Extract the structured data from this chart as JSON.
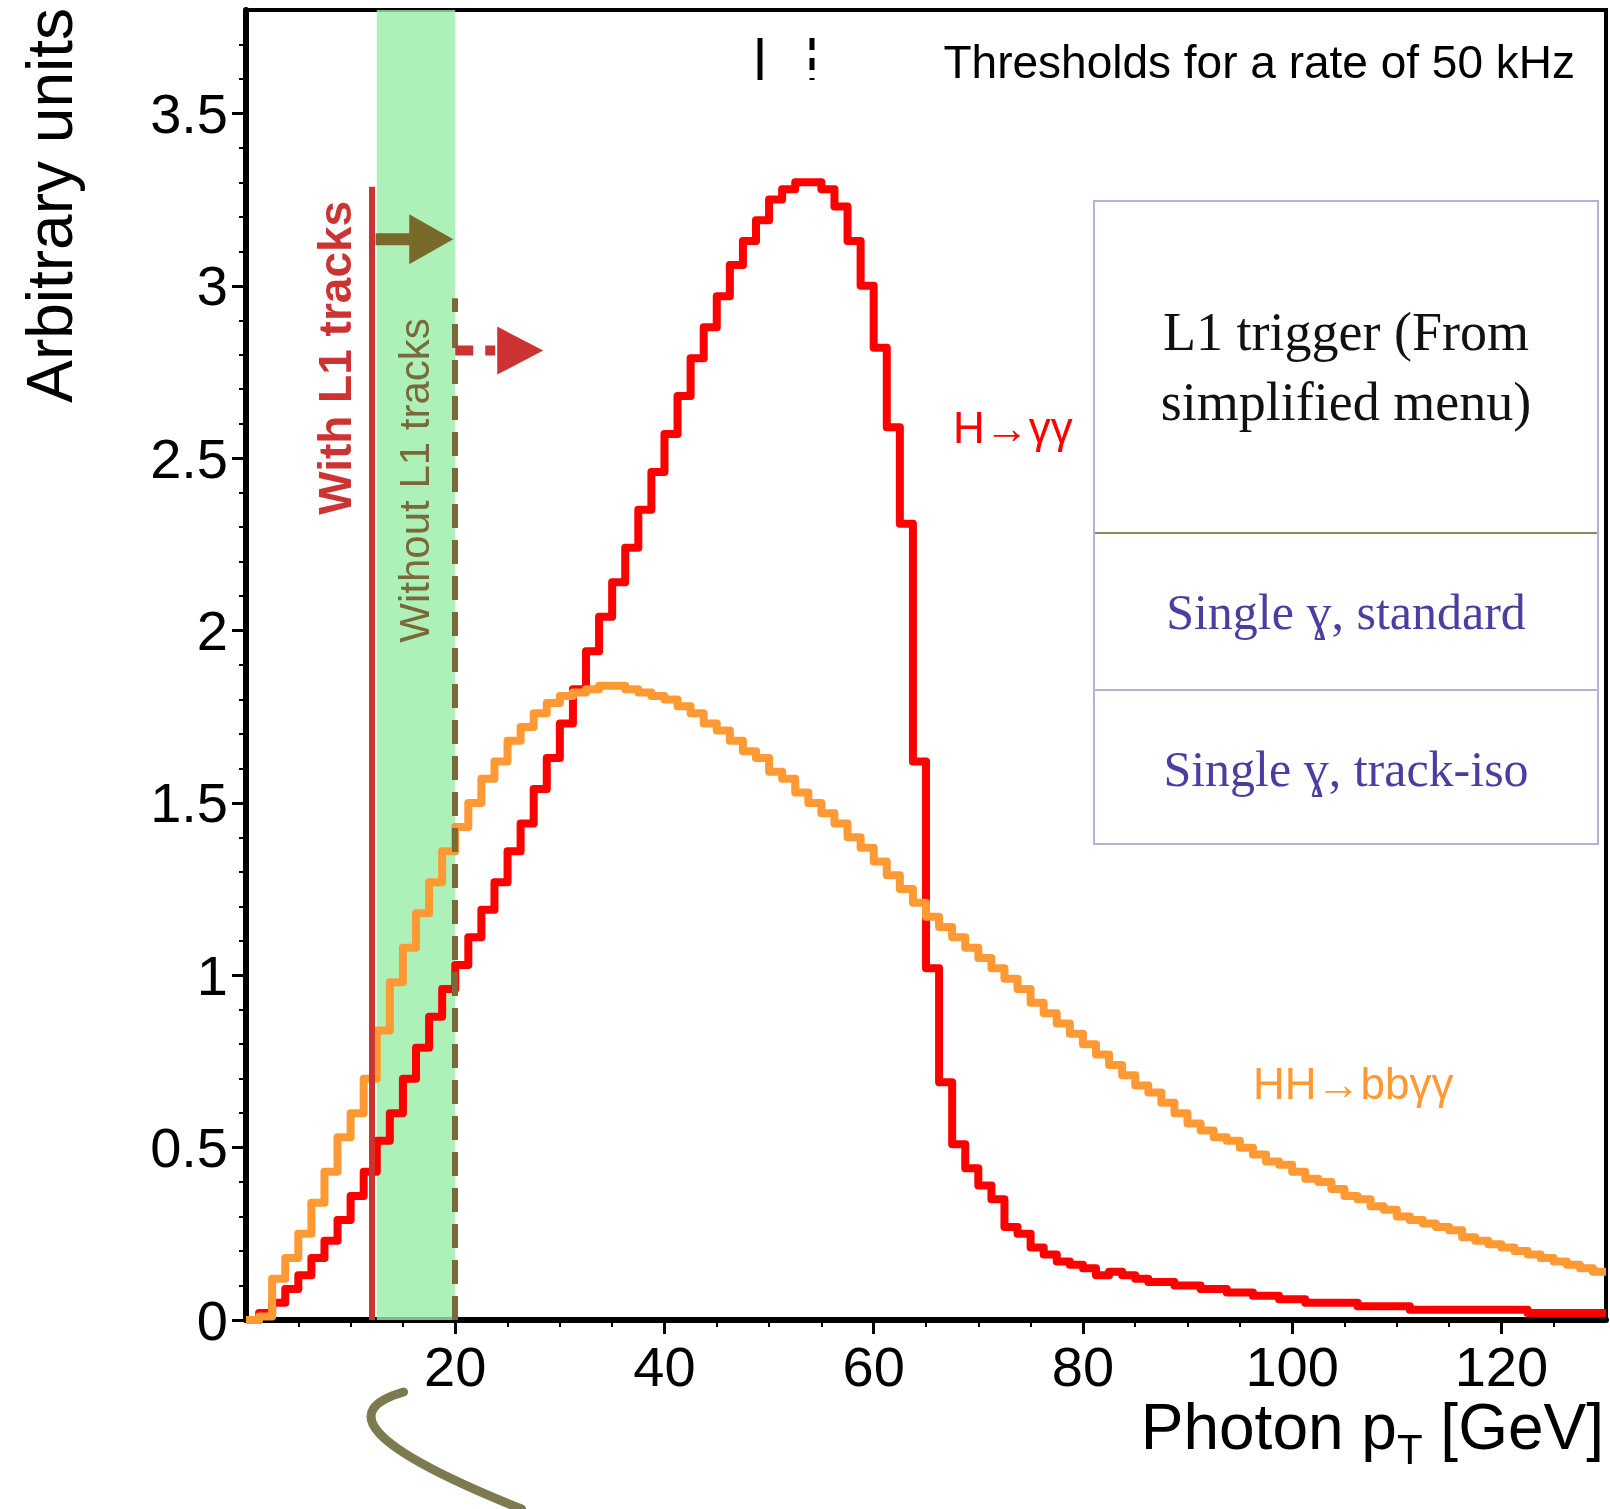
{
  "chart_data": [
    {
      "type": "histogram",
      "xlabel": "Photon p$_{T}$ [GeV]",
      "ylabel": "Arbitrary units",
      "bins": [
        0,
        1.25,
        2.5,
        3.75,
        5,
        6.25,
        7.5,
        8.75,
        10,
        11.25,
        12.5,
        13.75,
        15,
        16.25,
        17.5,
        18.75,
        20,
        21.25,
        22.5,
        23.75,
        25,
        26.25,
        27.5,
        28.75,
        30,
        31.25,
        32.5,
        33.75,
        35,
        36.25,
        37.5,
        38.75,
        40,
        41.25,
        42.5,
        43.75,
        45,
        46.25,
        47.5,
        48.75,
        50,
        51.25,
        52.5,
        53.75,
        55,
        56.25,
        57.5,
        58.75,
        60,
        61.25,
        62.5,
        63.75,
        65,
        66.25,
        67.5,
        68.75,
        70,
        71.25,
        72.5,
        73.75,
        75,
        76.25,
        77.5,
        78.75,
        80,
        81.25,
        82.5,
        83.75,
        85,
        86.25,
        87.5,
        88.75,
        90,
        91.25,
        92.5,
        93.75,
        95,
        96.25,
        97.5,
        98.75,
        100,
        101.25,
        102.5,
        103.75,
        105,
        106.25,
        107.5,
        108.75,
        110,
        111.25,
        112.5,
        113.75,
        115,
        116.25,
        117.5,
        118.75,
        120,
        121.25,
        122.5,
        123.75,
        125,
        126.25,
        127.5,
        128.75,
        130
      ],
      "series": [
        {
          "name": "H→γγ",
          "color": "#ff0000",
          "values": [
            0,
            0.02,
            0.05,
            0.09,
            0.13,
            0.18,
            0.23,
            0.29,
            0.36,
            0.43,
            0.52,
            0.6,
            0.7,
            0.79,
            0.88,
            0.96,
            1.03,
            1.11,
            1.19,
            1.27,
            1.36,
            1.44,
            1.54,
            1.63,
            1.73,
            1.83,
            1.94,
            2.04,
            2.14,
            2.24,
            2.35,
            2.46,
            2.57,
            2.68,
            2.79,
            2.88,
            2.97,
            3.06,
            3.13,
            3.19,
            3.25,
            3.28,
            3.3,
            3.3,
            3.28,
            3.23,
            3.13,
            3,
            2.82,
            2.59,
            2.31,
            1.62,
            1.02,
            0.69,
            0.51,
            0.44,
            0.39,
            0.35,
            0.27,
            0.25,
            0.21,
            0.19,
            0.17,
            0.16,
            0.15,
            0.13,
            0.14,
            0.13,
            0.12,
            0.11,
            0.11,
            0.1,
            0.1,
            0.09,
            0.09,
            0.08,
            0.08,
            0.07,
            0.07,
            0.06,
            0.06,
            0.05,
            0.05,
            0.05,
            0.05,
            0.04,
            0.04,
            0.04,
            0.04,
            0.03,
            0.03,
            0.03,
            0.03,
            0.03,
            0.03,
            0.03,
            0.03,
            0.03,
            0.02,
            0.02,
            0.02,
            0.02,
            0.02,
            0.02
          ]
        },
        {
          "name": "HH→bbγγ",
          "color": "#ff9933",
          "values": [
            0,
            0.01,
            0.12,
            0.18,
            0.25,
            0.34,
            0.43,
            0.53,
            0.6,
            0.7,
            0.84,
            0.98,
            1.08,
            1.18,
            1.27,
            1.36,
            1.43,
            1.5,
            1.57,
            1.62,
            1.68,
            1.72,
            1.76,
            1.79,
            1.81,
            1.82,
            1.83,
            1.84,
            1.84,
            1.83,
            1.82,
            1.81,
            1.8,
            1.78,
            1.76,
            1.73,
            1.71,
            1.68,
            1.65,
            1.63,
            1.59,
            1.57,
            1.53,
            1.5,
            1.47,
            1.44,
            1.4,
            1.37,
            1.33,
            1.29,
            1.25,
            1.21,
            1.17,
            1.14,
            1.11,
            1.08,
            1.05,
            1.02,
            0.99,
            0.96,
            0.92,
            0.89,
            0.86,
            0.83,
            0.8,
            0.77,
            0.74,
            0.71,
            0.68,
            0.66,
            0.63,
            0.6,
            0.57,
            0.55,
            0.53,
            0.52,
            0.5,
            0.48,
            0.46,
            0.45,
            0.43,
            0.41,
            0.4,
            0.38,
            0.36,
            0.35,
            0.33,
            0.32,
            0.3,
            0.29,
            0.28,
            0.27,
            0.26,
            0.24,
            0.23,
            0.22,
            0.21,
            0.2,
            0.19,
            0.18,
            0.17,
            0.16,
            0.15,
            0.14
          ]
        }
      ],
      "xlim": [
        0,
        130
      ],
      "xticks": [
        20,
        40,
        60,
        80,
        100,
        120
      ],
      "ylim": [
        0,
        3.8
      ],
      "yticks": [
        0,
        0.5,
        1,
        1.5,
        2,
        2.5,
        3,
        3.5
      ],
      "ref_lines": [
        {
          "axis": "x",
          "value": 12,
          "label": "With L1 tracks",
          "color": "#cc3333",
          "line_style": "solid"
        },
        {
          "axis": "x",
          "value": 20,
          "label": "Without L1 tracks",
          "color": "#7a6a3a",
          "line_style": "dashed"
        }
      ],
      "bands": [
        {
          "axis": "x",
          "from": 12.5,
          "to": 20,
          "color": "#99eea6"
        }
      ],
      "annotations": [
        "Thresholds for a rate of 50 kHz"
      ],
      "grid": false
    },
    {
      "type": "other",
      "title": "L1 trigger (From simplified menu)",
      "annotations": [
        "Single ɣ, standard",
        "Single ɣ, track-iso"
      ]
    }
  ]
}
